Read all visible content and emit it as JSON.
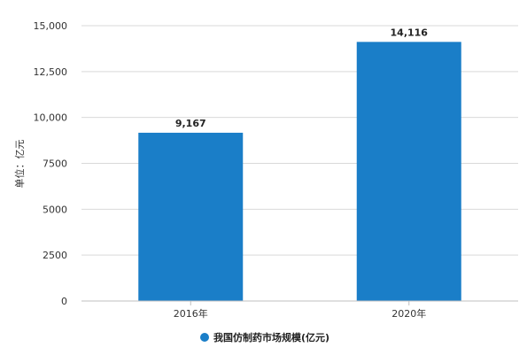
{
  "chart_data": {
    "type": "bar",
    "categories": [
      "2016年",
      "2020年"
    ],
    "series": [
      {
        "name": "我国仿制药市场规模(亿元)",
        "values": [
          9167,
          14116
        ],
        "value_labels": [
          "9,167",
          "14,116"
        ]
      }
    ],
    "ylabel": "单位：亿元",
    "ylim": [
      0,
      15000
    ],
    "yticks": [
      0,
      2500,
      5000,
      7500,
      10000,
      12500,
      15000
    ],
    "ytick_labels": [
      "0",
      "2500",
      "5000",
      "7500",
      "10,000",
      "12,500",
      "15,000"
    ],
    "grid": true,
    "legend_position": "bottom",
    "colors": {
      "bar": "#1a7ec8",
      "grid": "#d9d9d9",
      "axis": "#bfbfbf"
    }
  }
}
